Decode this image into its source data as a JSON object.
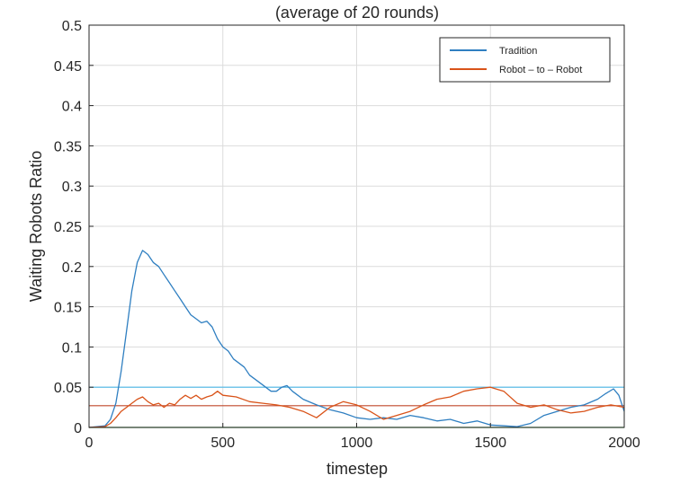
{
  "chart_data": {
    "type": "line",
    "title": "(average of 20 rounds)",
    "xlabel": "timestep",
    "ylabel": "Waiting Robots Ratio",
    "xlim": [
      0,
      2000
    ],
    "ylim": [
      0,
      0.5
    ],
    "xticks": [
      "0",
      "500",
      "1000",
      "1500",
      "2000"
    ],
    "yticks": [
      "0",
      "0.05",
      "0.1",
      "0.15",
      "0.2",
      "0.25",
      "0.3",
      "0.35",
      "0.4",
      "0.45",
      "0.5"
    ],
    "grid": true,
    "legend_position": "top-right",
    "series": [
      {
        "name": "Tradition",
        "color": "#2f7fc1",
        "x": [
          0,
          60,
          80,
          100,
          120,
          140,
          160,
          180,
          200,
          220,
          240,
          260,
          280,
          300,
          320,
          340,
          360,
          380,
          400,
          420,
          440,
          460,
          480,
          500,
          520,
          540,
          560,
          580,
          600,
          620,
          640,
          660,
          680,
          700,
          720,
          740,
          760,
          780,
          800,
          850,
          900,
          950,
          1000,
          1050,
          1100,
          1150,
          1200,
          1250,
          1300,
          1350,
          1400,
          1450,
          1500,
          1550,
          1600,
          1650,
          1700,
          1750,
          1800,
          1850,
          1900,
          1930,
          1960,
          1980,
          2000
        ],
        "values": [
          0,
          0.002,
          0.01,
          0.03,
          0.07,
          0.12,
          0.17,
          0.205,
          0.22,
          0.215,
          0.205,
          0.2,
          0.19,
          0.18,
          0.17,
          0.16,
          0.15,
          0.14,
          0.135,
          0.13,
          0.132,
          0.125,
          0.11,
          0.1,
          0.095,
          0.085,
          0.08,
          0.075,
          0.065,
          0.06,
          0.055,
          0.05,
          0.045,
          0.045,
          0.05,
          0.052,
          0.045,
          0.04,
          0.035,
          0.028,
          0.022,
          0.018,
          0.012,
          0.01,
          0.012,
          0.01,
          0.015,
          0.012,
          0.008,
          0.01,
          0.005,
          0.008,
          0.003,
          0.002,
          0.001,
          0.005,
          0.015,
          0.02,
          0.025,
          0.028,
          0.035,
          0.042,
          0.048,
          0.04,
          0.02
        ]
      },
      {
        "name": "Robot – to – Robot",
        "color": "#d95319",
        "x": [
          0,
          60,
          80,
          100,
          120,
          140,
          160,
          180,
          200,
          220,
          240,
          260,
          280,
          300,
          320,
          340,
          360,
          380,
          400,
          420,
          440,
          460,
          480,
          500,
          550,
          600,
          650,
          700,
          750,
          800,
          850,
          900,
          950,
          1000,
          1050,
          1100,
          1150,
          1200,
          1250,
          1300,
          1350,
          1400,
          1450,
          1500,
          1550,
          1600,
          1650,
          1700,
          1750,
          1800,
          1850,
          1900,
          1950,
          2000
        ],
        "values": [
          0,
          0.001,
          0.005,
          0.012,
          0.02,
          0.025,
          0.03,
          0.035,
          0.038,
          0.032,
          0.028,
          0.03,
          0.025,
          0.03,
          0.028,
          0.035,
          0.04,
          0.036,
          0.04,
          0.035,
          0.038,
          0.04,
          0.045,
          0.04,
          0.038,
          0.032,
          0.03,
          0.028,
          0.025,
          0.02,
          0.012,
          0.025,
          0.032,
          0.028,
          0.02,
          0.01,
          0.015,
          0.02,
          0.028,
          0.035,
          0.038,
          0.045,
          0.048,
          0.05,
          0.045,
          0.03,
          0.025,
          0.028,
          0.022,
          0.018,
          0.02,
          0.025,
          0.028,
          0.025
        ]
      }
    ],
    "reference_lines": [
      {
        "value": 0.05,
        "color": "#4db8e8"
      },
      {
        "value": 0.027,
        "color": "#c0492b"
      },
      {
        "value": 0.0,
        "color": "#2ca02c"
      }
    ]
  }
}
